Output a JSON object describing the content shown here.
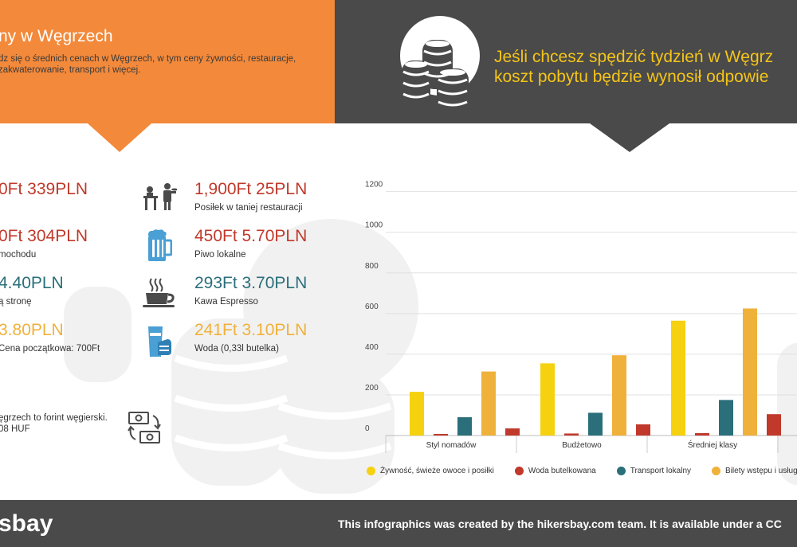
{
  "header": {
    "title": "ny w Węgrzech",
    "description": "dz się o średnich cenach w Węgrzech, w tym ceny żywności, restauracje, zakwaterowanie, transport i więcej.",
    "right_title_line1": "Jeśli chcesz spędzić tydzień w Węgrz",
    "right_title_line2": "koszt pobytu będzie wynosił odpowie"
  },
  "prices_left": [
    {
      "value": "0Ft 339PLN",
      "label": "",
      "color": "#c0392b"
    },
    {
      "value": "0Ft 304PLN",
      "label": "mochodu",
      "color": "#c0392b"
    },
    {
      "value": "4.40PLN",
      "label": "ą stronę",
      "color": "#2a6f7a"
    },
    {
      "value": "3.80PLN",
      "label": "Cena początkowa: 700Ft",
      "color": "#f0b13b"
    }
  ],
  "prices_right": [
    {
      "value": "1,900Ft 25PLN",
      "label": "Posiłek w taniej restauracji",
      "icon": "waiter-icon",
      "color": "#c0392b"
    },
    {
      "value": "450Ft 5.70PLN",
      "label": "Piwo lokalne",
      "icon": "beer-mug-icon",
      "color": "#c0392b"
    },
    {
      "value": "293Ft 3.70PLN",
      "label": "Kawa Espresso",
      "icon": "coffee-cup-icon",
      "color": "#2a6f7a"
    },
    {
      "value": "241Ft 3.10PLN",
      "label": "Woda (0,33l butelka)",
      "icon": "water-bottle-icon",
      "color": "#f0b13b"
    }
  ],
  "currency": {
    "line1": "ęgrzech to forint węgierski.",
    "line2": "08 HUF"
  },
  "chart_data": {
    "type": "bar",
    "categories": [
      "Styl nomadów",
      "Budżetowo",
      "Średniej klasy"
    ],
    "series": [
      {
        "name": "Żywność, świeże owoce i posiłki",
        "color": "#f5d10f",
        "values": [
          215,
          355,
          565
        ]
      },
      {
        "name": "Woda butelkowana",
        "color": "#c0392b",
        "values": [
          8,
          10,
          12
        ]
      },
      {
        "name": "Transport lokalny",
        "color": "#2a6f7a",
        "values": [
          90,
          112,
          175
        ]
      },
      {
        "name": "Bilety wstępu i usługi przewod",
        "color": "#f0b13b",
        "values": [
          315,
          395,
          625
        ]
      },
      {
        "name": "",
        "color": "#c0392b",
        "values": [
          35,
          55,
          105
        ]
      }
    ],
    "yticks": [
      0,
      200,
      400,
      600,
      800,
      1000,
      1200
    ],
    "ylim": [
      0,
      1200
    ],
    "grid": true,
    "legend": "bottom"
  },
  "footer": {
    "logo": "sbay",
    "credit": "This infographics was created by the hikersbay.com team. It is available under a CC"
  }
}
